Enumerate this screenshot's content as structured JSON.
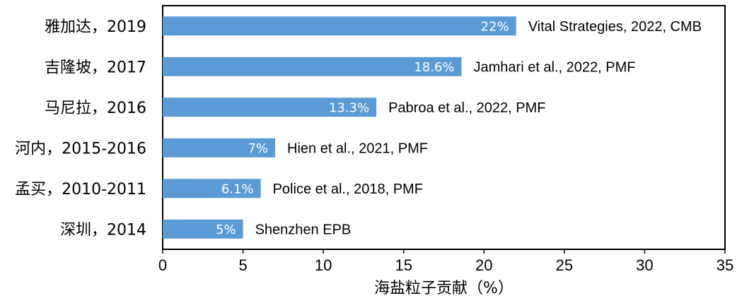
{
  "chart_data": {
    "type": "bar",
    "orientation": "horizontal",
    "categories": [
      "雅加达，2019",
      "吉隆坡，2017",
      "马尼拉，2016",
      "河内，2015-2016",
      "孟买，2010-2011",
      "深圳，2014"
    ],
    "values": [
      22,
      18.6,
      13.3,
      7,
      6.1,
      5
    ],
    "value_labels": [
      "22%",
      "18.6%",
      "13.3%",
      "7%",
      "6.1%",
      "5%"
    ],
    "sources": [
      "Vital Strategies, 2022, CMB",
      "Jamhari et al., 2022, PMF",
      "Pabroa et al., 2022, PMF",
      "Hien et al., 2021, PMF",
      "Police et al., 2018, PMF",
      "Shenzhen EPB"
    ],
    "xlabel": "海盐粒子贡献（%）",
    "xlim": [
      0,
      35
    ],
    "xticks": [
      0,
      5,
      10,
      15,
      20,
      25,
      30,
      35
    ],
    "xtick_labels": [
      "0",
      "5",
      "10",
      "15",
      "20",
      "25",
      "30",
      "35"
    ],
    "grid": false,
    "legend": "none",
    "colors": {
      "bar": "#5b9bd5",
      "axis": "#000000",
      "bar_label": "#ffffff"
    }
  }
}
